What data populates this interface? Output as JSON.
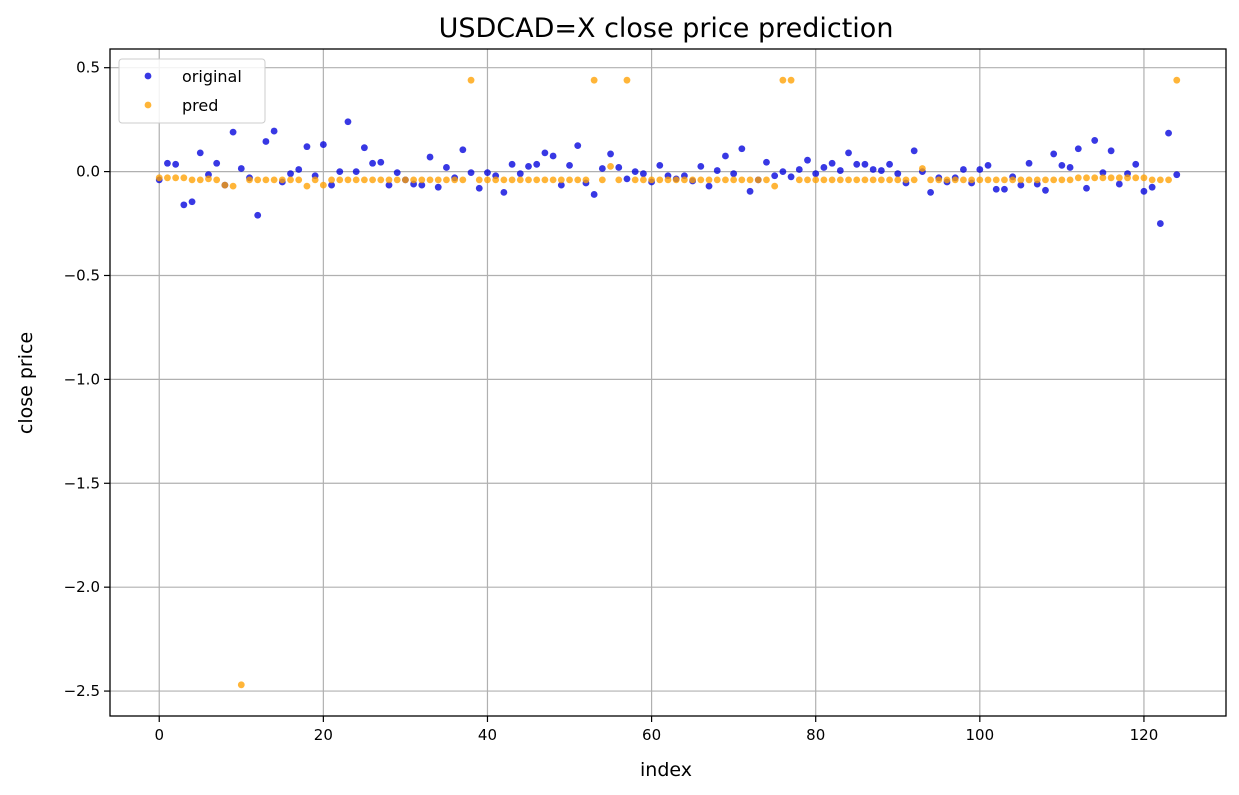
{
  "chart_data": {
    "type": "scatter",
    "title": "USDCAD=X close price prediction",
    "xlabel": "index",
    "ylabel": "close price",
    "xlim": [
      -6,
      130
    ],
    "ylim": [
      -2.62,
      0.59
    ],
    "xticks": [
      0,
      20,
      40,
      60,
      80,
      100,
      120
    ],
    "yticks": [
      0.5,
      0.0,
      -0.5,
      -1.0,
      -1.5,
      -2.0,
      -2.5
    ],
    "ytick_labels": [
      "0.5",
      "0.0",
      "−0.5",
      "−1.0",
      "−1.5",
      "−2.0",
      "−2.5"
    ],
    "grid": true,
    "legend": "top-left",
    "series": [
      {
        "name": "original",
        "color": "#0000dd",
        "values": [
          -0.04,
          0.04,
          0.035,
          -0.16,
          -0.145,
          0.09,
          -0.015,
          0.04,
          -0.065,
          0.19,
          0.015,
          -0.03,
          -0.21,
          0.145,
          0.195,
          -0.05,
          -0.01,
          0.01,
          0.12,
          -0.02,
          0.13,
          -0.065,
          0.0,
          0.24,
          0.0,
          0.115,
          0.04,
          0.045,
          -0.065,
          -0.005,
          -0.04,
          -0.06,
          -0.065,
          0.07,
          -0.075,
          0.02,
          -0.03,
          0.105,
          -0.005,
          -0.08,
          -0.005,
          -0.02,
          -0.1,
          0.035,
          -0.01,
          0.025,
          0.035,
          0.09,
          0.075,
          -0.065,
          0.03,
          0.125,
          -0.055,
          -0.11,
          0.015,
          0.085,
          0.02,
          -0.035,
          0.0,
          -0.01,
          -0.05,
          0.03,
          -0.02,
          -0.035,
          -0.02,
          -0.045,
          0.025,
          -0.07,
          0.005,
          0.075,
          -0.01,
          0.11,
          -0.095,
          -0.04,
          0.045,
          -0.02,
          0.0,
          -0.025,
          0.01,
          0.055,
          -0.01,
          0.02,
          0.04,
          0.005,
          0.09,
          0.035,
          0.035,
          0.01,
          0.005,
          0.035,
          -0.01,
          -0.055,
          0.1,
          0.0,
          -0.1,
          -0.03,
          -0.05,
          -0.03,
          0.01,
          -0.055,
          0.01,
          0.03,
          -0.085,
          -0.085,
          -0.025,
          -0.065,
          0.04,
          -0.06,
          -0.09,
          0.085,
          0.03,
          0.02,
          0.11,
          -0.08,
          0.15,
          -0.005,
          0.1,
          -0.06,
          -0.01,
          0.035,
          -0.095,
          -0.075,
          -0.25,
          0.185,
          -0.015
        ]
      },
      {
        "name": "pred",
        "color": "#ffa000",
        "values": [
          -0.03,
          -0.03,
          -0.03,
          -0.03,
          -0.04,
          -0.04,
          -0.035,
          -0.04,
          -0.065,
          -0.07,
          -2.47,
          -0.04,
          -0.04,
          -0.04,
          -0.04,
          -0.04,
          -0.04,
          -0.04,
          -0.07,
          -0.04,
          -0.065,
          -0.04,
          -0.04,
          -0.04,
          -0.04,
          -0.04,
          -0.04,
          -0.04,
          -0.04,
          -0.04,
          -0.04,
          -0.04,
          -0.04,
          -0.04,
          -0.04,
          -0.04,
          -0.04,
          -0.04,
          0.44,
          -0.04,
          -0.04,
          -0.04,
          -0.04,
          -0.04,
          -0.04,
          -0.04,
          -0.04,
          -0.04,
          -0.04,
          -0.04,
          -0.04,
          -0.04,
          -0.04,
          0.44,
          -0.04,
          0.025,
          -0.04,
          0.44,
          -0.04,
          -0.04,
          -0.04,
          -0.04,
          -0.04,
          -0.04,
          -0.04,
          -0.04,
          -0.04,
          -0.04,
          -0.04,
          -0.04,
          -0.04,
          -0.04,
          -0.04,
          -0.04,
          -0.04,
          -0.07,
          0.44,
          0.44,
          -0.04,
          -0.04,
          -0.04,
          -0.04,
          -0.04,
          -0.04,
          -0.04,
          -0.04,
          -0.04,
          -0.04,
          -0.04,
          -0.04,
          -0.04,
          -0.04,
          -0.04,
          0.015,
          -0.04,
          -0.04,
          -0.04,
          -0.04,
          -0.04,
          -0.04,
          -0.04,
          -0.04,
          -0.04,
          -0.04,
          -0.04,
          -0.04,
          -0.04,
          -0.04,
          -0.04,
          -0.04,
          -0.04,
          -0.04,
          -0.03,
          -0.03,
          -0.03,
          -0.03,
          -0.03,
          -0.03,
          -0.03,
          -0.03,
          -0.03,
          -0.04,
          -0.04,
          -0.04,
          0.44
        ]
      }
    ]
  }
}
